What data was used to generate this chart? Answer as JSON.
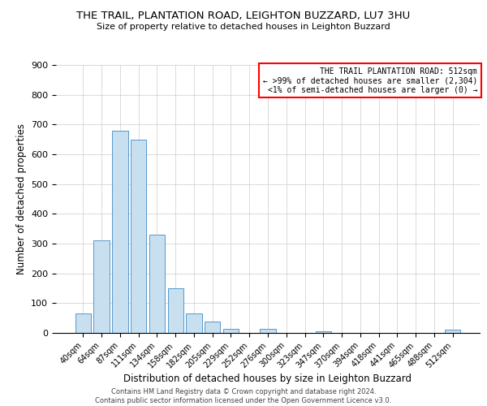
{
  "title": "THE TRAIL, PLANTATION ROAD, LEIGHTON BUZZARD, LU7 3HU",
  "subtitle": "Size of property relative to detached houses in Leighton Buzzard",
  "xlabel": "Distribution of detached houses by size in Leighton Buzzard",
  "ylabel": "Number of detached properties",
  "bar_labels": [
    "40sqm",
    "64sqm",
    "87sqm",
    "111sqm",
    "134sqm",
    "158sqm",
    "182sqm",
    "205sqm",
    "229sqm",
    "252sqm",
    "276sqm",
    "300sqm",
    "323sqm",
    "347sqm",
    "370sqm",
    "394sqm",
    "418sqm",
    "441sqm",
    "465sqm",
    "488sqm",
    "512sqm"
  ],
  "bar_values": [
    65,
    310,
    680,
    650,
    330,
    150,
    65,
    37,
    13,
    0,
    13,
    0,
    0,
    5,
    0,
    0,
    0,
    0,
    0,
    0,
    10
  ],
  "bar_color": "#c8dff0",
  "bar_edge_color": "#5599cc",
  "ylim": [
    0,
    900
  ],
  "yticks": [
    0,
    100,
    200,
    300,
    400,
    500,
    600,
    700,
    800,
    900
  ],
  "annotation_box_text_line1": "THE TRAIL PLANTATION ROAD: 512sqm",
  "annotation_box_text_line2": "← >99% of detached houses are smaller (2,304)",
  "annotation_box_text_line3": "<1% of semi-detached houses are larger (0) →",
  "annotation_box_color": "red",
  "footer_line1": "Contains HM Land Registry data © Crown copyright and database right 2024.",
  "footer_line2": "Contains public sector information licensed under the Open Government Licence v3.0.",
  "background_color": "#ffffff",
  "grid_color": "#cccccc"
}
